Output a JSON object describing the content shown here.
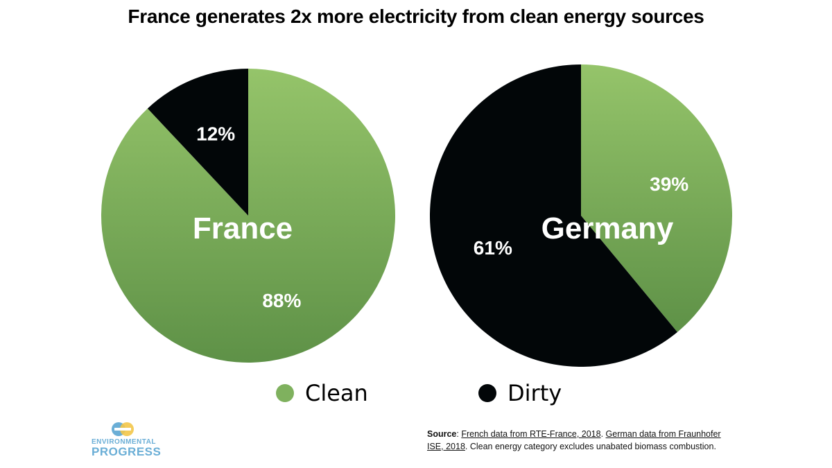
{
  "title": "France generates 2x more electricity from clean energy sources",
  "colors": {
    "clean": "#7fb15e",
    "clean_light": "#95c46a",
    "clean_dark": "#5e9147",
    "dirty": "#020608",
    "logo": "#6aaed6",
    "logo_accent": "#f3c64a"
  },
  "chart_data": [
    {
      "type": "pie",
      "name": "France",
      "categories": [
        "Clean",
        "Dirty"
      ],
      "values": [
        88,
        12
      ],
      "labels": [
        "88%",
        "12%"
      ]
    },
    {
      "type": "pie",
      "name": "Germany",
      "categories": [
        "Clean",
        "Dirty"
      ],
      "values": [
        39,
        61
      ],
      "labels": [
        "39%",
        "61%"
      ]
    }
  ],
  "legend": [
    {
      "label": "Clean",
      "color": "#7fb15e"
    },
    {
      "label": "Dirty",
      "color": "#020608"
    }
  ],
  "source": {
    "prefix": "Source",
    "colon": ": ",
    "french": "French data from RTE-France, 2018",
    "sep": ". ",
    "german_1": "German data from Fraunhofer",
    "german_2": "ISE, 2018",
    "note": ". Clean energy category excludes unabated biomass combustion."
  },
  "logo": {
    "line1": "ENVIRONMENTAL",
    "line2": "PROGRESS",
    "mark": "ep"
  }
}
